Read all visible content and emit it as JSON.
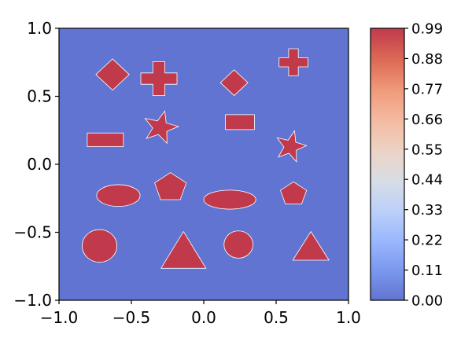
{
  "chart_data": {
    "type": "heatmap",
    "title": "",
    "xlabel": "",
    "ylabel": "",
    "xlim": [
      -1.0,
      1.0
    ],
    "ylim": [
      -1.0,
      1.0
    ],
    "x_ticks": [
      "−1.0",
      "−0.5",
      "0.0",
      "0.5",
      "1.0"
    ],
    "y_ticks": [
      "1.0",
      "0.5",
      "0.0",
      "−0.5",
      "−1.0"
    ],
    "x_tick_values": [
      -1.0,
      -0.5,
      0.0,
      0.5,
      1.0
    ],
    "y_tick_values": [
      1.0,
      0.5,
      0.0,
      -0.5,
      -1.0
    ],
    "background_value": 0.0,
    "shape_value": 0.99,
    "grid": false,
    "colormap": "coolwarm",
    "colors": {
      "low": "#6274d1",
      "high": "#c03a4c"
    },
    "colorbar": {
      "range": [
        0.0,
        0.99
      ],
      "ticks": [
        "0.99",
        "0.88",
        "0.77",
        "0.66",
        "0.55",
        "0.44",
        "0.33",
        "0.22",
        "0.11",
        "0.00"
      ],
      "tick_values": [
        0.99,
        0.88,
        0.77,
        0.66,
        0.55,
        0.44,
        0.33,
        0.22,
        0.11,
        0.0
      ]
    },
    "shapes": [
      {
        "kind": "diamond",
        "cx": -0.63,
        "cy": 0.66,
        "w": 0.23,
        "h": 0.23
      },
      {
        "kind": "cross",
        "cx": -0.31,
        "cy": 0.63,
        "w": 0.25,
        "h": 0.25
      },
      {
        "kind": "diamond",
        "cx": 0.21,
        "cy": 0.6,
        "w": 0.19,
        "h": 0.19
      },
      {
        "kind": "cross",
        "cx": 0.62,
        "cy": 0.75,
        "w": 0.2,
        "h": 0.2
      },
      {
        "kind": "rect",
        "cx": -0.68,
        "cy": 0.18,
        "w": 0.25,
        "h": 0.1
      },
      {
        "kind": "star",
        "cx": -0.3,
        "cy": 0.27,
        "w": 0.25,
        "h": 0.25
      },
      {
        "kind": "rect",
        "cx": 0.25,
        "cy": 0.31,
        "w": 0.2,
        "h": 0.11
      },
      {
        "kind": "star",
        "cx": 0.6,
        "cy": 0.13,
        "w": 0.22,
        "h": 0.24
      },
      {
        "kind": "ellipse",
        "cx": -0.59,
        "cy": -0.23,
        "w": 0.3,
        "h": 0.16
      },
      {
        "kind": "pentagon",
        "cx": -0.23,
        "cy": -0.16,
        "w": 0.23,
        "h": 0.22
      },
      {
        "kind": "ellipse",
        "cx": 0.18,
        "cy": -0.26,
        "w": 0.36,
        "h": 0.14
      },
      {
        "kind": "pentagon",
        "cx": 0.62,
        "cy": -0.21,
        "w": 0.19,
        "h": 0.18
      },
      {
        "kind": "ellipse",
        "cx": -0.72,
        "cy": -0.6,
        "w": 0.24,
        "h": 0.24
      },
      {
        "kind": "triangle",
        "cx": -0.14,
        "cy": -0.63,
        "w": 0.31,
        "h": 0.27
      },
      {
        "kind": "ellipse",
        "cx": 0.24,
        "cy": -0.59,
        "w": 0.2,
        "h": 0.2
      },
      {
        "kind": "triangle",
        "cx": 0.74,
        "cy": -0.6,
        "w": 0.25,
        "h": 0.21
      }
    ]
  }
}
